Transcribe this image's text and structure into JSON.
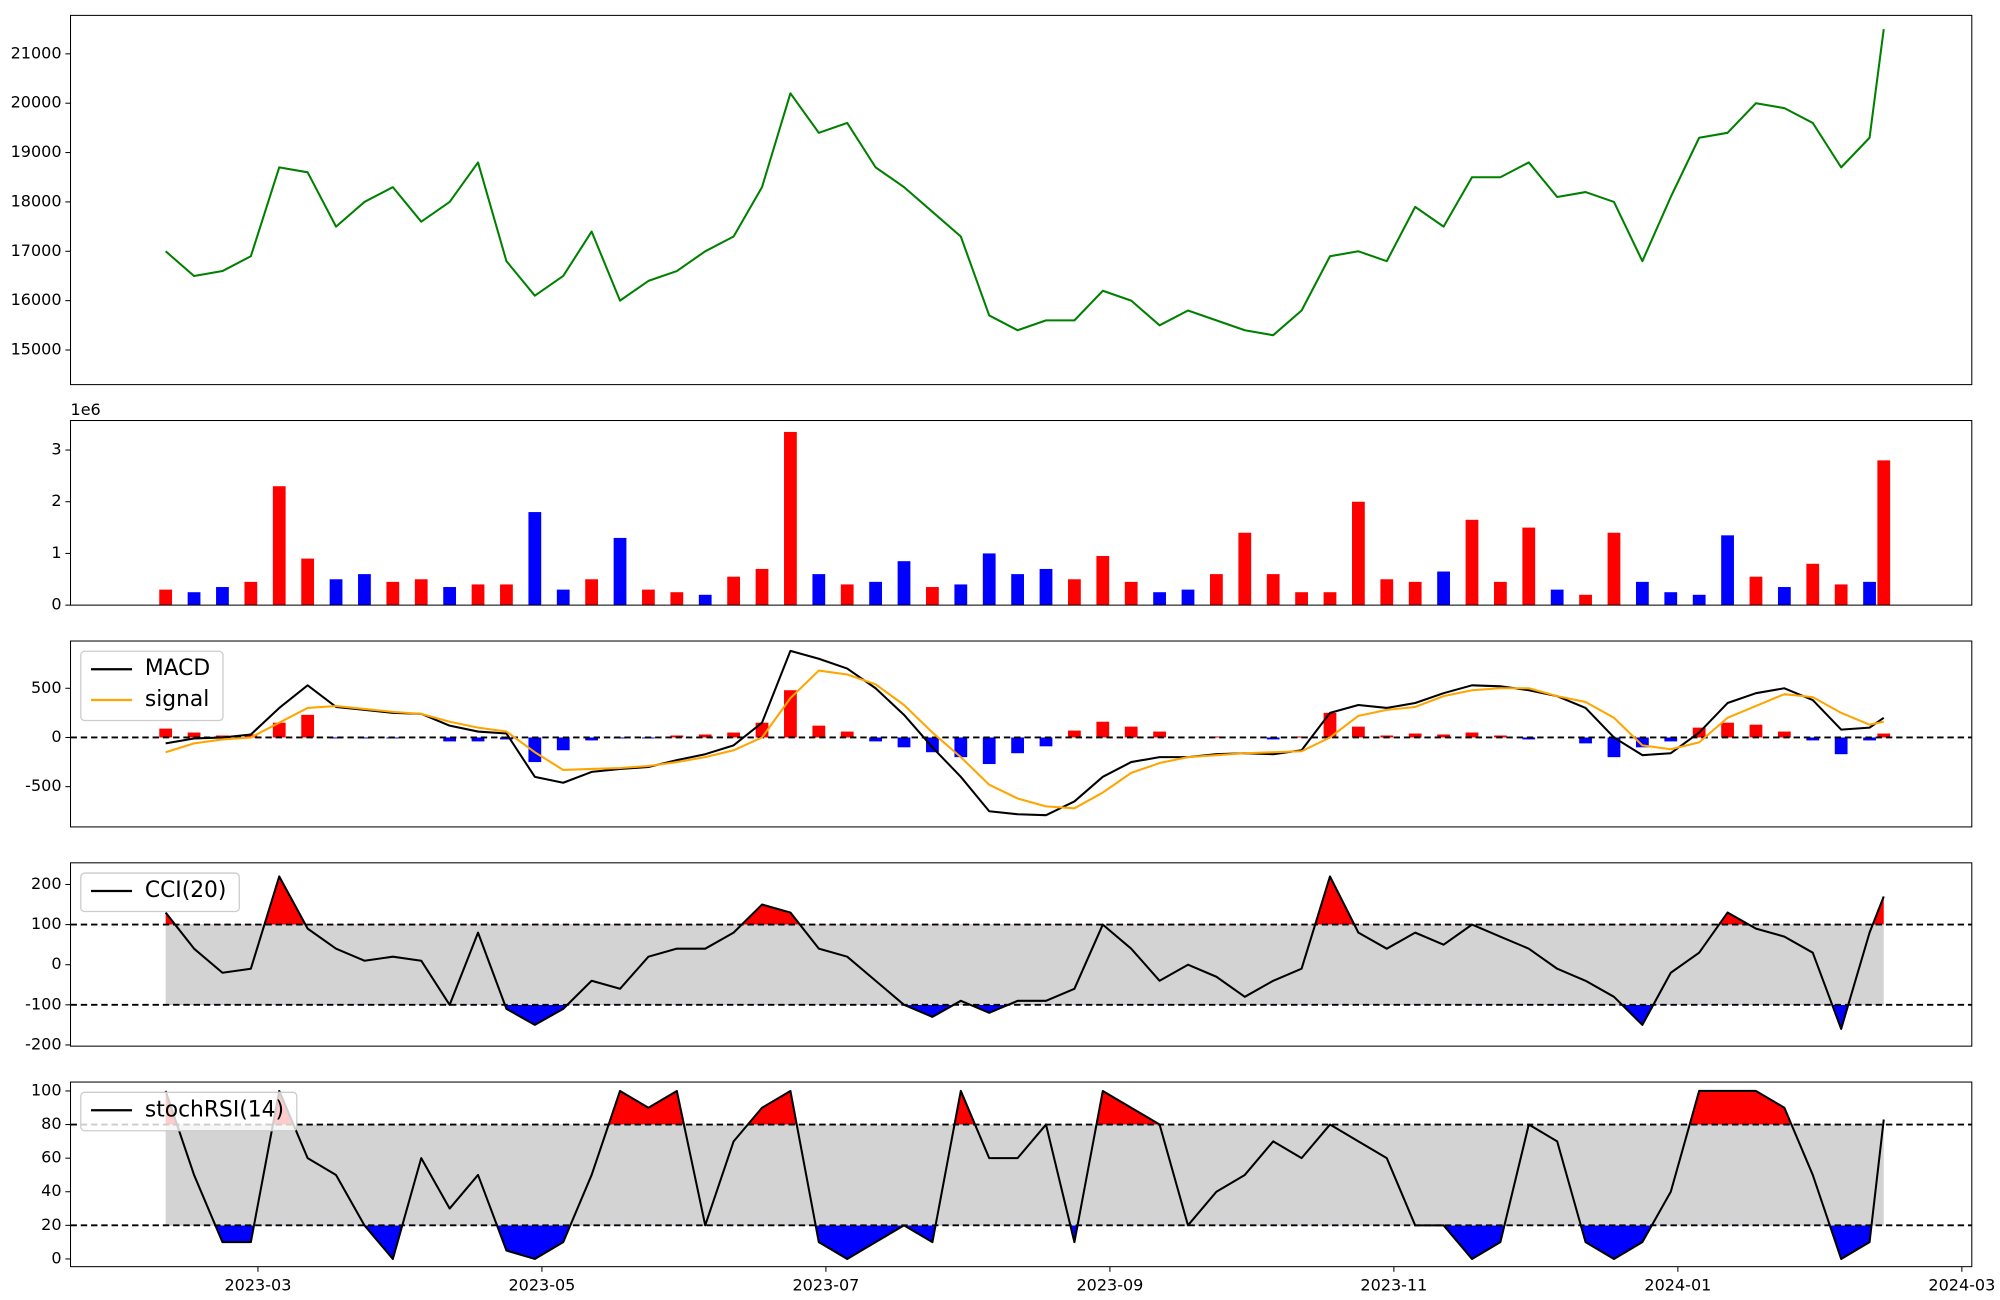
{
  "chart_data": [
    {
      "type": "line",
      "xlim": [
        -1.32,
        12.07
      ],
      "ylim": [
        14299,
        21779
      ],
      "yticks": [
        15000,
        16000,
        17000,
        18000,
        19000,
        20000,
        21000
      ],
      "x": [
        -0.65,
        -0.45,
        -0.25,
        -0.05,
        0.15,
        0.35,
        0.55,
        0.75,
        0.95,
        1.15,
        1.35,
        1.55,
        1.75,
        1.95,
        2.15,
        2.35,
        2.55,
        2.75,
        2.95,
        3.15,
        3.35,
        3.55,
        3.75,
        3.95,
        4.15,
        4.35,
        4.55,
        4.75,
        4.95,
        5.15,
        5.35,
        5.55,
        5.75,
        5.95,
        6.15,
        6.35,
        6.55,
        6.75,
        6.95,
        7.15,
        7.35,
        7.55,
        7.75,
        7.95,
        8.15,
        8.35,
        8.55,
        8.75,
        8.95,
        9.15,
        9.35,
        9.55,
        9.75,
        9.95,
        10.15,
        10.35,
        10.55,
        10.75,
        10.95,
        11.15,
        11.35,
        11.45
      ],
      "series": [
        {
          "color": "green",
          "values": [
            17000,
            16500,
            16600,
            16900,
            18700,
            18600,
            17500,
            18000,
            18300,
            17600,
            18000,
            18800,
            16800,
            16100,
            16500,
            17400,
            16000,
            16400,
            16600,
            17000,
            17300,
            18300,
            20200,
            19400,
            19600,
            18700,
            18300,
            17800,
            17300,
            15700,
            15400,
            15600,
            15600,
            16200,
            16000,
            15500,
            15800,
            15600,
            15400,
            15300,
            15800,
            16900,
            17000,
            16800,
            17900,
            17500,
            18500,
            18500,
            18800,
            18100,
            18200,
            18000,
            16800,
            18100,
            19300,
            19400,
            20000,
            19900,
            19600,
            18700,
            19300,
            21500
          ]
        }
      ]
    },
    {
      "type": "bar",
      "xlim": [
        -1.32,
        12.07
      ],
      "ylim": [
        0,
        3571000
      ],
      "offset_label": "1e6",
      "yticks": [
        0,
        {
          "value": 1000000,
          "label": "1"
        },
        {
          "value": 2000000,
          "label": "2"
        },
        {
          "value": 3000000,
          "label": "3"
        }
      ],
      "x": [
        -0.65,
        -0.45,
        -0.25,
        -0.05,
        0.15,
        0.35,
        0.55,
        0.75,
        0.95,
        1.15,
        1.35,
        1.55,
        1.75,
        1.95,
        2.15,
        2.35,
        2.55,
        2.75,
        2.95,
        3.15,
        3.35,
        3.55,
        3.75,
        3.95,
        4.15,
        4.35,
        4.55,
        4.75,
        4.95,
        5.15,
        5.35,
        5.55,
        5.75,
        5.95,
        6.15,
        6.35,
        6.55,
        6.75,
        6.95,
        7.15,
        7.35,
        7.55,
        7.75,
        7.95,
        8.15,
        8.35,
        8.55,
        8.75,
        8.95,
        9.15,
        9.35,
        9.55,
        9.75,
        9.95,
        10.15,
        10.35,
        10.55,
        10.75,
        10.95,
        11.15,
        11.35,
        11.45
      ],
      "series": [
        {
          "values": [
            300000,
            250000,
            350000,
            450000,
            2300000,
            900000,
            500000,
            600000,
            450000,
            500000,
            350000,
            400000,
            400000,
            1800000,
            300000,
            500000,
            1300000,
            300000,
            250000,
            200000,
            550000,
            700000,
            3350000,
            600000,
            400000,
            450000,
            850000,
            350000,
            400000,
            1000000,
            600000,
            700000,
            500000,
            950000,
            450000,
            250000,
            300000,
            600000,
            1400000,
            600000,
            250000,
            250000,
            2000000,
            500000,
            450000,
            650000,
            1650000,
            450000,
            1500000,
            300000,
            200000,
            1400000,
            450000,
            250000,
            200000,
            1350000,
            550000,
            350000,
            800000,
            400000,
            450000,
            2800000
          ],
          "colors": [
            "red",
            "blue",
            "blue",
            "red",
            "red",
            "red",
            "blue",
            "blue",
            "red",
            "red",
            "blue",
            "red",
            "red",
            "blue",
            "blue",
            "red",
            "blue",
            "red",
            "red",
            "blue",
            "red",
            "red",
            "red",
            "blue",
            "red",
            "blue",
            "blue",
            "red",
            "blue",
            "blue",
            "blue",
            "blue",
            "red",
            "red",
            "red",
            "blue",
            "blue",
            "red",
            "red",
            "red",
            "red",
            "red",
            "red",
            "red",
            "red",
            "blue",
            "red",
            "red",
            "red",
            "blue",
            "red",
            "red",
            "blue",
            "blue",
            "blue",
            "blue",
            "red",
            "blue",
            "red",
            "red",
            "blue",
            "red"
          ]
        }
      ]
    },
    {
      "type": "line",
      "xlim": [
        -1.32,
        12.07
      ],
      "ylim": [
        -909,
        980
      ],
      "yticks": [
        -500,
        0,
        500
      ],
      "hlines": [
        0
      ],
      "legend": "upper left",
      "x": [
        -0.65,
        -0.45,
        -0.25,
        -0.05,
        0.15,
        0.35,
        0.55,
        0.75,
        0.95,
        1.15,
        1.35,
        1.55,
        1.75,
        1.95,
        2.15,
        2.35,
        2.55,
        2.75,
        2.95,
        3.15,
        3.35,
        3.55,
        3.75,
        3.95,
        4.15,
        4.35,
        4.55,
        4.75,
        4.95,
        5.15,
        5.35,
        5.55,
        5.75,
        5.95,
        6.15,
        6.35,
        6.55,
        6.75,
        6.95,
        7.15,
        7.35,
        7.55,
        7.75,
        7.95,
        8.15,
        8.35,
        8.55,
        8.75,
        8.95,
        9.15,
        9.35,
        9.55,
        9.75,
        9.95,
        10.15,
        10.35,
        10.55,
        10.75,
        10.95,
        11.15,
        11.35,
        11.45
      ],
      "histogram": {
        "pos_color": "red",
        "neg_color": "blue",
        "values": [
          90,
          50,
          20,
          30,
          150,
          230,
          -10,
          -10,
          -10,
          0,
          -40,
          -40,
          -20,
          -250,
          -130,
          -30,
          -10,
          -10,
          20,
          30,
          50,
          150,
          480,
          120,
          60,
          -40,
          -100,
          -150,
          -200,
          -270,
          -160,
          -90,
          70,
          160,
          110,
          60,
          0,
          10,
          0,
          -20,
          10,
          250,
          110,
          20,
          40,
          30,
          50,
          20,
          -20,
          0,
          -60,
          -200,
          -100,
          -40,
          100,
          150,
          130,
          60,
          -30,
          -170,
          -30,
          40
        ]
      },
      "series": [
        {
          "name": "MACD",
          "color": "black",
          "values": [
            -60,
            -10,
            0,
            30,
            300,
            530,
            310,
            280,
            250,
            240,
            120,
            60,
            40,
            -400,
            -460,
            -350,
            -320,
            -300,
            -230,
            -170,
            -80,
            150,
            880,
            800,
            700,
            500,
            230,
            -100,
            -400,
            -750,
            -780,
            -790,
            -650,
            -400,
            -250,
            -200,
            -200,
            -170,
            -160,
            -170,
            -130,
            250,
            330,
            300,
            350,
            450,
            530,
            520,
            480,
            420,
            300,
            0,
            -180,
            -160,
            50,
            350,
            450,
            500,
            380,
            80,
            100,
            200
          ]
        },
        {
          "name": "signal",
          "color": "orange",
          "values": [
            -150,
            -60,
            -20,
            0,
            150,
            300,
            320,
            290,
            260,
            240,
            160,
            100,
            60,
            -150,
            -330,
            -320,
            -310,
            -290,
            -250,
            -200,
            -130,
            0,
            400,
            680,
            640,
            540,
            330,
            50,
            -200,
            -480,
            -620,
            -700,
            -720,
            -560,
            -360,
            -260,
            -200,
            -180,
            -160,
            -150,
            -140,
            0,
            220,
            280,
            310,
            420,
            480,
            500,
            500,
            420,
            360,
            200,
            -80,
            -120,
            -50,
            200,
            320,
            440,
            410,
            250,
            130,
            160
          ]
        }
      ]
    },
    {
      "type": "line",
      "xlim": [
        -1.32,
        12.07
      ],
      "ylim": [
        -203,
        254
      ],
      "yticks": [
        -200,
        -100,
        0,
        100,
        200
      ],
      "bands": [
        -100,
        100
      ],
      "band_color": "lightgray",
      "over_color": "red",
      "under_color": "blue",
      "legend": "upper left",
      "x": [
        -0.65,
        -0.45,
        -0.25,
        -0.05,
        0.15,
        0.35,
        0.55,
        0.75,
        0.95,
        1.15,
        1.35,
        1.55,
        1.75,
        1.95,
        2.15,
        2.35,
        2.55,
        2.75,
        2.95,
        3.15,
        3.35,
        3.55,
        3.75,
        3.95,
        4.15,
        4.35,
        4.55,
        4.75,
        4.95,
        5.15,
        5.35,
        5.55,
        5.75,
        5.95,
        6.15,
        6.35,
        6.55,
        6.75,
        6.95,
        7.15,
        7.35,
        7.55,
        7.75,
        7.95,
        8.15,
        8.35,
        8.55,
        8.75,
        8.95,
        9.15,
        9.35,
        9.55,
        9.75,
        9.95,
        10.15,
        10.35,
        10.55,
        10.75,
        10.95,
        11.15,
        11.35,
        11.45
      ],
      "series": [
        {
          "name": "CCI(20)",
          "color": "black",
          "values": [
            130,
            40,
            -20,
            -10,
            220,
            90,
            40,
            10,
            20,
            10,
            -100,
            80,
            -110,
            -150,
            -110,
            -40,
            -60,
            20,
            40,
            40,
            80,
            150,
            130,
            40,
            20,
            -40,
            -100,
            -130,
            -90,
            -120,
            -90,
            -90,
            -60,
            100,
            40,
            -40,
            0,
            -30,
            -80,
            -40,
            -10,
            220,
            80,
            40,
            80,
            50,
            100,
            70,
            40,
            -10,
            -40,
            -80,
            -150,
            -20,
            30,
            130,
            90,
            70,
            30,
            -160,
            80,
            170
          ]
        }
      ]
    },
    {
      "type": "line",
      "xlim": [
        -1.32,
        12.07
      ],
      "ylim": [
        -4.6,
        105.3
      ],
      "yticks": [
        0,
        20,
        40,
        60,
        80,
        100
      ],
      "bands": [
        20,
        80
      ],
      "band_color": "lightgray",
      "over_color": "red",
      "under_color": "blue",
      "legend": "upper left",
      "xticks": [
        {
          "value": 0,
          "label": "2023-03"
        },
        {
          "value": 2,
          "label": "2023-05"
        },
        {
          "value": 4,
          "label": "2023-07"
        },
        {
          "value": 6,
          "label": "2023-09"
        },
        {
          "value": 8,
          "label": "2023-11"
        },
        {
          "value": 10,
          "label": "2024-01"
        },
        {
          "value": 12,
          "label": "2024-03"
        }
      ],
      "x": [
        -0.65,
        -0.45,
        -0.25,
        -0.05,
        0.15,
        0.35,
        0.55,
        0.75,
        0.95,
        1.15,
        1.35,
        1.55,
        1.75,
        1.95,
        2.15,
        2.35,
        2.55,
        2.75,
        2.95,
        3.15,
        3.35,
        3.55,
        3.75,
        3.95,
        4.15,
        4.35,
        4.55,
        4.75,
        4.95,
        5.15,
        5.35,
        5.55,
        5.75,
        5.95,
        6.15,
        6.35,
        6.55,
        6.75,
        6.95,
        7.15,
        7.35,
        7.55,
        7.75,
        7.95,
        8.15,
        8.35,
        8.55,
        8.75,
        8.95,
        9.15,
        9.35,
        9.55,
        9.75,
        9.95,
        10.15,
        10.35,
        10.55,
        10.75,
        10.95,
        11.15,
        11.35,
        11.45
      ],
      "series": [
        {
          "name": "stochRSI(14)",
          "color": "black",
          "values": [
            100,
            50,
            10,
            10,
            100,
            60,
            50,
            20,
            0,
            60,
            30,
            50,
            5,
            0,
            10,
            50,
            100,
            90,
            100,
            20,
            70,
            90,
            100,
            10,
            0,
            10,
            20,
            10,
            100,
            60,
            60,
            80,
            10,
            100,
            90,
            80,
            20,
            40,
            50,
            70,
            60,
            80,
            70,
            60,
            20,
            20,
            0,
            10,
            80,
            70,
            10,
            0,
            10,
            40,
            100,
            100,
            100,
            90,
            50,
            0,
            10,
            83
          ]
        }
      ]
    }
  ]
}
